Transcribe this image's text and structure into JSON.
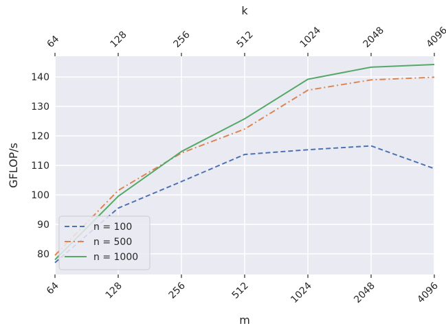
{
  "chart_data": {
    "type": "line",
    "x": [
      64,
      128,
      256,
      512,
      1024,
      2048,
      4096
    ],
    "x_tick_labels": [
      "64",
      "128",
      "256",
      "512",
      "1024",
      "2048",
      "4096"
    ],
    "top_tick_labels": [
      "64",
      "128",
      "256",
      "512",
      "1024",
      "2048",
      "4096"
    ],
    "x_scale": "log2",
    "xlabel": "m",
    "top_xlabel": "k",
    "ylabel": "GFLOP/s",
    "ylim": [
      73,
      147
    ],
    "y_ticks": [
      80,
      90,
      100,
      110,
      120,
      130,
      140
    ],
    "grid": true,
    "legend_position": "lower-left",
    "series": [
      {
        "name": "n = 100",
        "values": [
          77.0,
          95.5,
          104.5,
          113.7,
          115.3,
          116.6,
          108.9
        ],
        "color": "#4c72b0",
        "dash": "dashed"
      },
      {
        "name": "n = 500",
        "values": [
          79.5,
          101.5,
          114.2,
          122.3,
          135.5,
          139.0,
          139.9
        ],
        "color": "#dd8452",
        "dash": "dashdot"
      },
      {
        "name": "n = 1000",
        "values": [
          78.0,
          99.5,
          114.7,
          125.8,
          139.2,
          143.3,
          144.2
        ],
        "color": "#55a868",
        "dash": "solid"
      }
    ]
  }
}
